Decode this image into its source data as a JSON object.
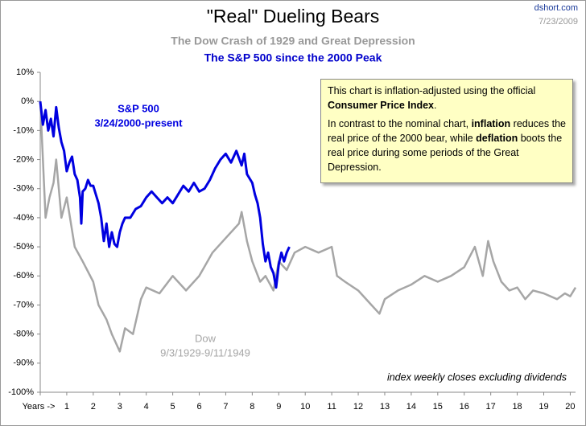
{
  "chart_data": {
    "type": "line",
    "title": "\"Real\" Dueling Bears",
    "subtitle": "The Dow Crash of 1929 and Great Depression",
    "subtitle2": "The S&P 500 since the 2000 Peak",
    "source": "dshort.com",
    "date": "7/23/2009",
    "footnote": "index weekly closes excluding dividends",
    "grid": false,
    "xlim": [
      0,
      20.2
    ],
    "ylim": [
      -100,
      10
    ],
    "xticks": [
      {
        "value": 0,
        "label": "Years ->"
      },
      1,
      2,
      3,
      4,
      5,
      6,
      7,
      8,
      9,
      10,
      11,
      12,
      13,
      14,
      15,
      16,
      17,
      18,
      19,
      20
    ],
    "yticks": [
      {
        "value": 10,
        "label": "10%"
      },
      {
        "value": 0,
        "label": "0%"
      },
      {
        "value": -10,
        "label": "-10%"
      },
      {
        "value": -20,
        "label": "-20%"
      },
      {
        "value": -30,
        "label": "-30%"
      },
      {
        "value": -40,
        "label": "-40%"
      },
      {
        "value": -50,
        "label": "-50%"
      },
      {
        "value": -60,
        "label": "-60%"
      },
      {
        "value": -70,
        "label": "-70%"
      },
      {
        "value": -80,
        "label": "-80%"
      },
      {
        "value": -90,
        "label": "-90%"
      },
      {
        "value": -100,
        "label": "-100%"
      }
    ],
    "series": [
      {
        "name": "Dow",
        "period": "9/3/1929-9/11/1949",
        "color": "#a6a6a6",
        "x": [
          0,
          0.1,
          0.2,
          0.35,
          0.5,
          0.6,
          0.8,
          1.0,
          1.3,
          1.6,
          2.0,
          2.2,
          2.5,
          2.7,
          3.0,
          3.2,
          3.5,
          3.8,
          4.0,
          4.5,
          5.0,
          5.5,
          6.0,
          6.5,
          7.0,
          7.5,
          7.6,
          7.8,
          8.0,
          8.3,
          8.5,
          8.8,
          9.0,
          9.3,
          9.6,
          10,
          10.5,
          11,
          11.2,
          11.5,
          12,
          12.5,
          12.8,
          13.0,
          13.5,
          14,
          14.5,
          15,
          15.5,
          16,
          16.4,
          16.7,
          16.9,
          17.1,
          17.4,
          17.7,
          18,
          18.3,
          18.6,
          19,
          19.5,
          19.8,
          20,
          20.2
        ],
        "values": [
          0,
          -20,
          -40,
          -33,
          -28,
          -20,
          -40,
          -33,
          -50,
          -55,
          -62,
          -70,
          -75,
          -80,
          -86,
          -78,
          -80,
          -68,
          -64,
          -66,
          -60,
          -65,
          -60,
          -52,
          -47,
          -42,
          -38,
          -48,
          -55,
          -62,
          -60,
          -65,
          -55,
          -58,
          -52,
          -50,
          -52,
          -50,
          -60,
          -62,
          -65,
          -70,
          -73,
          -68,
          -65,
          -63,
          -60,
          -62,
          -60,
          -57,
          -50,
          -60,
          -48,
          -55,
          -62,
          -65,
          -64,
          -68,
          -65,
          -66,
          -68,
          -66,
          -67,
          -64
        ]
      },
      {
        "name": "S&P 500",
        "period": "3/24/2000-present",
        "color": "#0000e0",
        "x": [
          0,
          0.1,
          0.2,
          0.3,
          0.4,
          0.5,
          0.6,
          0.7,
          0.8,
          0.9,
          1.0,
          1.1,
          1.2,
          1.3,
          1.4,
          1.5,
          1.55,
          1.6,
          1.7,
          1.8,
          1.9,
          2.0,
          2.1,
          2.2,
          2.3,
          2.4,
          2.5,
          2.6,
          2.7,
          2.8,
          2.9,
          3.0,
          3.1,
          3.2,
          3.4,
          3.6,
          3.8,
          4.0,
          4.2,
          4.4,
          4.6,
          4.8,
          5.0,
          5.2,
          5.4,
          5.6,
          5.8,
          6.0,
          6.2,
          6.4,
          6.6,
          6.8,
          7.0,
          7.2,
          7.4,
          7.6,
          7.7,
          7.8,
          8.0,
          8.1,
          8.2,
          8.3,
          8.4,
          8.5,
          8.6,
          8.7,
          8.8,
          8.9,
          9.0,
          9.1,
          9.2,
          9.3,
          9.4
        ],
        "values": [
          0,
          -8,
          -3,
          -10,
          -6,
          -12,
          -2,
          -9,
          -14,
          -17,
          -24,
          -21,
          -19,
          -25,
          -27,
          -33,
          -42,
          -31,
          -30,
          -27,
          -29,
          -29,
          -32,
          -35,
          -40,
          -48,
          -42,
          -50,
          -45,
          -49,
          -50,
          -45,
          -42,
          -40,
          -40,
          -37,
          -36,
          -33,
          -31,
          -33,
          -35,
          -33,
          -35,
          -32,
          -29,
          -31,
          -28,
          -31,
          -30,
          -27,
          -23,
          -20,
          -18,
          -21,
          -17,
          -22,
          -18,
          -25,
          -28,
          -32,
          -35,
          -40,
          -49,
          -55,
          -52,
          -57,
          -59,
          -64,
          -56,
          -52,
          -55,
          -52,
          -50
        ]
      }
    ],
    "note": {
      "paragraph1": [
        "This chart is inflation-adjusted using the official ",
        "Consumer Price Index",
        "."
      ],
      "paragraph2": [
        "In contrast to the nominal chart, ",
        "inflation",
        " reduces the real price of the 2000  bear, while ",
        "deflation",
        " boots the real price during some periods of the Great Depression."
      ]
    }
  }
}
